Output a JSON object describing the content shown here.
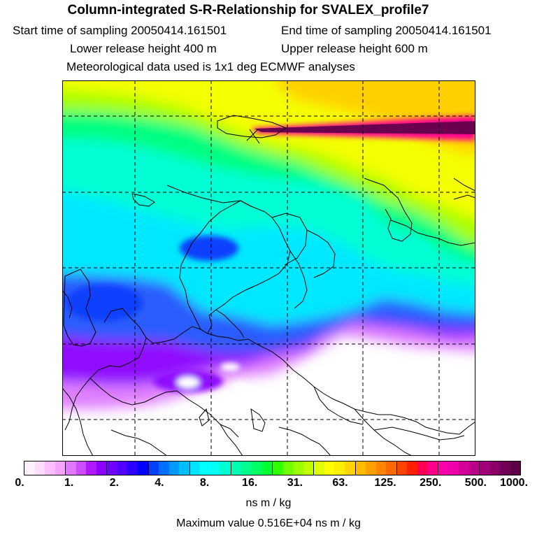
{
  "header": {
    "title": "Column-integrated S-R-Relationship for SVALEX_profile7",
    "start_time": "Start time of sampling 20050414.161501",
    "end_time": "End time of sampling 20050414.161501",
    "lower_height": "Lower release height  400 m",
    "upper_height": "Upper release height  600 m",
    "met_data": "Meteorological data used is 1x1 deg ECMWF analyses"
  },
  "colorbar": {
    "tick_labels": [
      "0.",
      "1.",
      "2.",
      "4.",
      "8.",
      "16.",
      "31.",
      "63.",
      "125.",
      "250.",
      "500.",
      "1000."
    ],
    "unit": "ns m / kg",
    "colors": [
      "#fff0ff",
      "#ffdcff",
      "#ffbfff",
      "#f5a4ff",
      "#e078ff",
      "#cc4cff",
      "#b019ff",
      "#8c00ff",
      "#7000ff",
      "#5000ff",
      "#2c00ff",
      "#0000ff",
      "#0040ff",
      "#0070ff",
      "#0099ff",
      "#00bfff",
      "#00e5ff",
      "#00ffff",
      "#00fff0",
      "#00ffd0",
      "#00ffb0",
      "#00ff8c",
      "#00ff60",
      "#00ff30",
      "#30ff00",
      "#70ff00",
      "#9cff00",
      "#c0ff00",
      "#e0ff00",
      "#ffff00",
      "#ffee00",
      "#ffd400",
      "#ffbb00",
      "#ffa000",
      "#ff8400",
      "#ff6800",
      "#ff4400",
      "#ff2000",
      "#ff0050",
      "#ff0088",
      "#ff00aa",
      "#ee00aa",
      "#d40099",
      "#bb0088",
      "#a00077",
      "#880066",
      "#700055",
      "#5a0044"
    ]
  },
  "max_value": "Maximum value  0.516E+04 ns m / kg",
  "map": {
    "field_colors": {
      "white": "#ffffff",
      "magenta": "#e080ff",
      "purple": "#9010ff",
      "blue": "#2a5cff",
      "deep_blue": "#1040ff",
      "cyan": "#00e8ff",
      "teal": "#00ffd4",
      "green": "#00ff80",
      "lime": "#a8ff00",
      "yellow": "#f4ff00",
      "orange": "#ffd000",
      "plume_dark": "#6a0050",
      "plume_pink": "#ff0090"
    }
  }
}
